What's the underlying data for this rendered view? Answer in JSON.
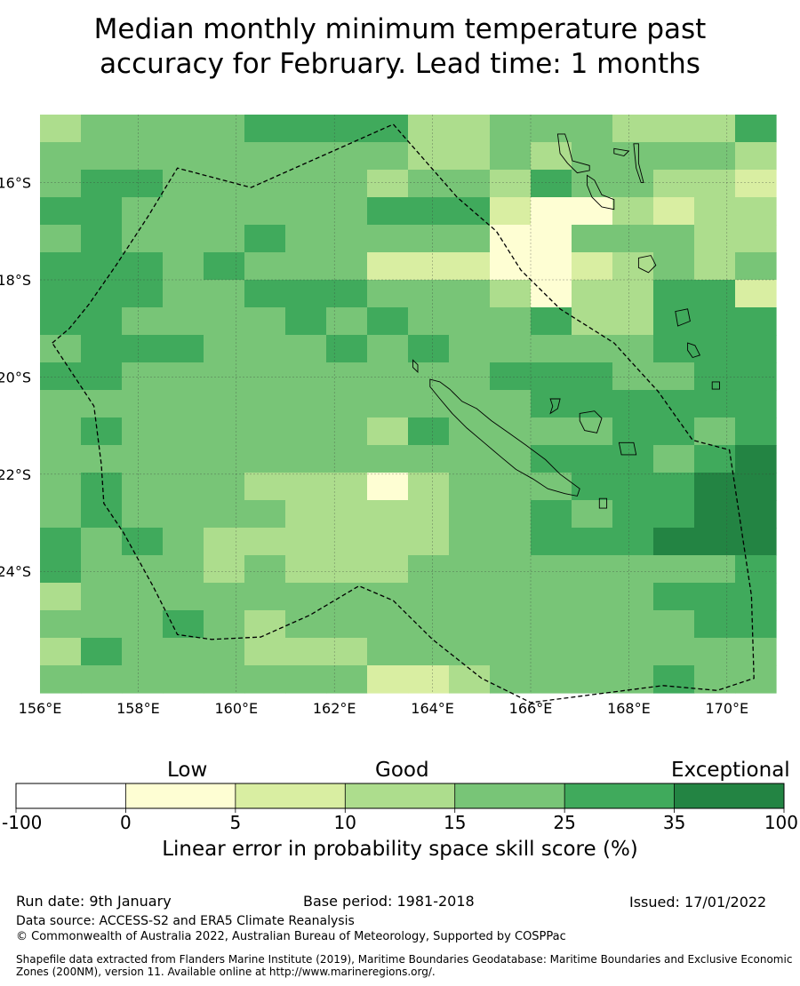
{
  "title_line1": "Median monthly minimum temperature past",
  "title_line2": "accuracy for February. Lead time: 1 months",
  "map": {
    "lon_range": [
      156,
      171
    ],
    "lat_range": [
      -26.5,
      -14.6
    ],
    "lon_ticks": [
      "156°E",
      "158°E",
      "160°E",
      "162°E",
      "164°E",
      "166°E",
      "168°E",
      "170°E"
    ],
    "lat_ticks": [
      "16°S",
      "18°S",
      "20°S",
      "22°S",
      "24°S"
    ],
    "grid_cols": 18,
    "grid_rows": 21,
    "color_levels": {
      "0": "#fefed3",
      "1": "#d9eea2",
      "2": "#addd8d",
      "3": "#78c577",
      "4": "#40aa5c",
      "5": "#238443"
    },
    "grid": [
      "233334444223332224",
      "333333333223233332",
      "344333332332433221",
      "443333334441002122",
      "343334333330033322",
      "444343331110012323",
      "444334443332022441",
      "443333434333422444",
      "344433343433333444",
      "443333333334443344",
      "333333333333444444",
      "343333332433334434",
      "333333333333444345",
      "343332220233344455",
      "343333222233434455",
      "434322222233444555",
      "433323222333333334",
      "233333333333333444",
      "333432333333333344",
      "243332223333333333",
      "333333331123333433"
    ],
    "islands": [
      {
        "name": "espiritu-santo",
        "pts": [
          [
            166.55,
            -15.0
          ],
          [
            166.7,
            -15.0
          ],
          [
            166.75,
            -15.15
          ],
          [
            166.85,
            -15.55
          ],
          [
            167.2,
            -15.65
          ],
          [
            167.2,
            -15.75
          ],
          [
            166.95,
            -15.8
          ],
          [
            166.75,
            -15.6
          ],
          [
            166.6,
            -15.4
          ],
          [
            166.55,
            -15.0
          ]
        ]
      },
      {
        "name": "malekula",
        "pts": [
          [
            167.15,
            -15.85
          ],
          [
            167.3,
            -15.95
          ],
          [
            167.45,
            -16.25
          ],
          [
            167.7,
            -16.35
          ],
          [
            167.7,
            -16.55
          ],
          [
            167.45,
            -16.5
          ],
          [
            167.25,
            -16.3
          ],
          [
            167.15,
            -16.05
          ],
          [
            167.15,
            -15.85
          ]
        ]
      },
      {
        "name": "efate",
        "pts": [
          [
            168.2,
            -17.55
          ],
          [
            168.45,
            -17.5
          ],
          [
            168.55,
            -17.7
          ],
          [
            168.4,
            -17.85
          ],
          [
            168.2,
            -17.75
          ],
          [
            168.2,
            -17.55
          ]
        ]
      },
      {
        "name": "maewo-pentecost",
        "pts": [
          [
            168.1,
            -15.2
          ],
          [
            168.2,
            -15.2
          ],
          [
            168.2,
            -15.6
          ],
          [
            168.3,
            -16.0
          ],
          [
            168.25,
            -16.0
          ],
          [
            168.15,
            -15.7
          ],
          [
            168.1,
            -15.2
          ]
        ]
      },
      {
        "name": "ambae",
        "pts": [
          [
            167.7,
            -15.3
          ],
          [
            168.0,
            -15.35
          ],
          [
            167.9,
            -15.45
          ],
          [
            167.7,
            -15.4
          ],
          [
            167.7,
            -15.3
          ]
        ]
      },
      {
        "name": "erromango",
        "pts": [
          [
            168.95,
            -18.65
          ],
          [
            169.2,
            -18.6
          ],
          [
            169.25,
            -18.85
          ],
          [
            169.0,
            -18.95
          ],
          [
            168.95,
            -18.65
          ]
        ]
      },
      {
        "name": "tanna",
        "pts": [
          [
            169.2,
            -19.3
          ],
          [
            169.35,
            -19.35
          ],
          [
            169.45,
            -19.55
          ],
          [
            169.3,
            -19.6
          ],
          [
            169.2,
            -19.45
          ],
          [
            169.2,
            -19.3
          ]
        ]
      },
      {
        "name": "aneityum",
        "pts": [
          [
            169.7,
            -20.1
          ],
          [
            169.85,
            -20.1
          ],
          [
            169.85,
            -20.25
          ],
          [
            169.7,
            -20.25
          ],
          [
            169.7,
            -20.1
          ]
        ]
      },
      {
        "name": "grande-terre",
        "pts": [
          [
            163.95,
            -20.05
          ],
          [
            164.15,
            -20.1
          ],
          [
            164.35,
            -20.25
          ],
          [
            164.6,
            -20.5
          ],
          [
            164.9,
            -20.65
          ],
          [
            165.2,
            -20.9
          ],
          [
            165.55,
            -21.15
          ],
          [
            165.9,
            -21.4
          ],
          [
            166.3,
            -21.7
          ],
          [
            166.6,
            -22.0
          ],
          [
            167.0,
            -22.3
          ],
          [
            166.95,
            -22.45
          ],
          [
            166.7,
            -22.4
          ],
          [
            166.35,
            -22.3
          ],
          [
            166.05,
            -22.1
          ],
          [
            165.7,
            -21.9
          ],
          [
            165.4,
            -21.65
          ],
          [
            165.05,
            -21.35
          ],
          [
            164.7,
            -21.05
          ],
          [
            164.4,
            -20.75
          ],
          [
            164.15,
            -20.45
          ],
          [
            163.95,
            -20.2
          ],
          [
            163.95,
            -20.05
          ]
        ]
      },
      {
        "name": "belep",
        "pts": [
          [
            163.6,
            -19.65
          ],
          [
            163.7,
            -19.75
          ],
          [
            163.7,
            -19.9
          ],
          [
            163.6,
            -19.8
          ],
          [
            163.6,
            -19.65
          ]
        ]
      },
      {
        "name": "ouvea",
        "pts": [
          [
            166.4,
            -20.45
          ],
          [
            166.6,
            -20.45
          ],
          [
            166.55,
            -20.65
          ],
          [
            166.4,
            -20.75
          ],
          [
            166.45,
            -20.6
          ],
          [
            166.4,
            -20.45
          ]
        ]
      },
      {
        "name": "lifou",
        "pts": [
          [
            167.0,
            -20.75
          ],
          [
            167.3,
            -20.7
          ],
          [
            167.45,
            -20.85
          ],
          [
            167.35,
            -21.15
          ],
          [
            167.1,
            -21.1
          ],
          [
            167.0,
            -20.9
          ],
          [
            167.0,
            -20.75
          ]
        ]
      },
      {
        "name": "mare",
        "pts": [
          [
            167.8,
            -21.35
          ],
          [
            168.1,
            -21.35
          ],
          [
            168.15,
            -21.6
          ],
          [
            167.85,
            -21.6
          ],
          [
            167.8,
            -21.35
          ]
        ]
      },
      {
        "name": "ile-des-pins",
        "pts": [
          [
            167.4,
            -22.5
          ],
          [
            167.55,
            -22.5
          ],
          [
            167.55,
            -22.7
          ],
          [
            167.4,
            -22.7
          ],
          [
            167.4,
            -22.5
          ]
        ]
      }
    ],
    "eez_boundary": [
      [
        156.25,
        -19.3
      ],
      [
        156.6,
        -19.0
      ],
      [
        157.0,
        -18.5
      ],
      [
        157.55,
        -17.7
      ],
      [
        158.2,
        -16.7
      ],
      [
        158.8,
        -15.7
      ],
      [
        160.3,
        -16.1
      ],
      [
        163.2,
        -14.8
      ],
      [
        164.5,
        -16.3
      ],
      [
        165.3,
        -17.0
      ],
      [
        165.8,
        -17.8
      ],
      [
        166.6,
        -18.6
      ],
      [
        167.7,
        -19.3
      ],
      [
        168.6,
        -20.3
      ],
      [
        169.3,
        -21.3
      ],
      [
        170.05,
        -21.5
      ],
      [
        170.5,
        -24.5
      ],
      [
        170.55,
        -26.2
      ],
      [
        169.8,
        -26.45
      ],
      [
        168.7,
        -26.35
      ],
      [
        166.0,
        -26.7
      ],
      [
        165.0,
        -26.2
      ],
      [
        164.0,
        -25.4
      ],
      [
        163.2,
        -24.6
      ],
      [
        162.5,
        -24.3
      ],
      [
        161.5,
        -24.9
      ],
      [
        160.5,
        -25.35
      ],
      [
        159.5,
        -25.4
      ],
      [
        158.8,
        -25.3
      ],
      [
        158.3,
        -24.3
      ],
      [
        157.7,
        -23.2
      ],
      [
        157.3,
        -22.6
      ],
      [
        157.25,
        -21.8
      ],
      [
        157.1,
        -20.6
      ],
      [
        156.25,
        -19.3
      ]
    ]
  },
  "colorbar": {
    "label_low": "Low",
    "label_good": "Good",
    "label_exceptional": "Exceptional",
    "ticks": [
      "-100",
      "0",
      "5",
      "10",
      "15",
      "25",
      "35",
      "100"
    ],
    "colors": [
      "#ffffff",
      "#fefed3",
      "#d9eea2",
      "#addd8d",
      "#78c577",
      "#40aa5c",
      "#238443"
    ],
    "title": "Linear error in probability space skill score (%)"
  },
  "footer": {
    "run_date": "Run date: 9th January",
    "base_period": "Base period: 1981-2018",
    "issued": "Issued: 17/01/2022",
    "data_source": "Data source: ACCESS-S2 and ERA5 Climate Reanalysis",
    "copyright": "© Commonwealth of Australia 2022, Australian Bureau of Meteorology, Supported by COSPPac",
    "shapefile_line1": "Shapefile data extracted from Flanders Marine Institute (2019), Maritime Boundaries Geodatabase: Maritime Boundaries and Exclusive Economic",
    "shapefile_line2": "Zones (200NM), version 11. Available online at http://www.marineregions.org/."
  }
}
